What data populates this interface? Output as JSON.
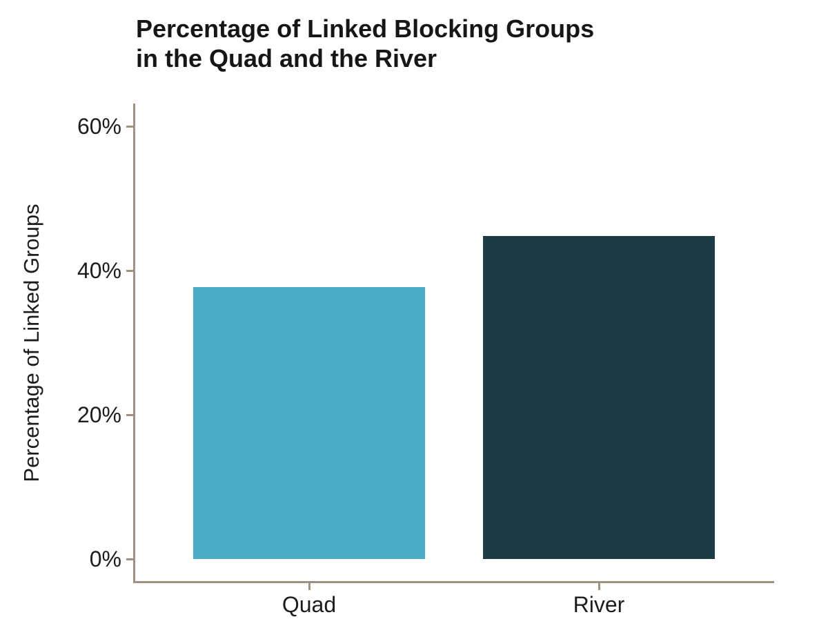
{
  "chart_data": {
    "type": "bar",
    "title": "Percentage of Linked Blocking Groups in the Quad and the River",
    "title_lines": [
      "Percentage of Linked Blocking Groups",
      "in the Quad and the River"
    ],
    "categories": [
      "Quad",
      "River"
    ],
    "values": [
      37.7,
      44.8
    ],
    "xlabel": "",
    "ylabel": "Percentage of Linked Groups",
    "ylim": [
      0,
      62
    ],
    "yticks": [
      {
        "value": 0,
        "label": "0%"
      },
      {
        "value": 20,
        "label": "20%"
      },
      {
        "value": 40,
        "label": "40%"
      },
      {
        "value": 60,
        "label": "60%"
      }
    ],
    "bar_colors": [
      "#4aacc6",
      "#1c3b45"
    ],
    "axis_color": "#a3907f",
    "text_color": "#1c1c1c",
    "background": "#ffffff",
    "grid": false,
    "legend": "none"
  }
}
